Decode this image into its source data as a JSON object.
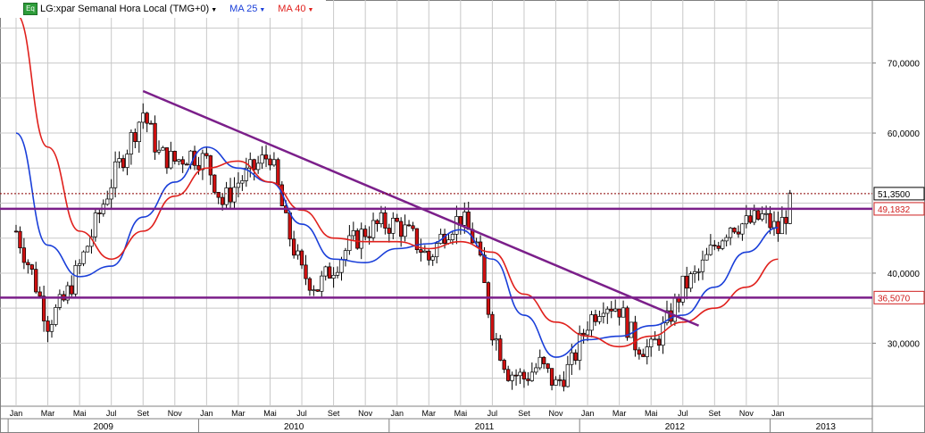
{
  "legend": {
    "icon_label": "Eq",
    "title": "LG:xpar Semanal Hora Local (TMG+0)",
    "ma25": "MA 25",
    "ma40": "MA 40",
    "colors": {
      "title": "#000000",
      "ma25": "#1a3fd9",
      "ma40": "#e0201c"
    }
  },
  "chart_data": {
    "type": "candlestick",
    "title": "LG:xpar Semanal Hora Local (TMG+0)",
    "ylim": [
      21,
      79
    ],
    "y_ticks": [
      "70,0000",
      "60,0000",
      "40,0000",
      "30,0000"
    ],
    "y_tick_values": [
      70,
      60,
      40,
      30
    ],
    "x_months": [
      "Jan",
      "Mar",
      "Mai",
      "Jul",
      "Set",
      "Nov",
      "Jan",
      "Mar",
      "Mai",
      "Jul",
      "Set",
      "Nov",
      "Jan",
      "Mar",
      "Mai",
      "Jul",
      "Set",
      "Nov",
      "Jan",
      "Mar",
      "Mai",
      "Jul",
      "Set",
      "Nov",
      "Jan"
    ],
    "x_years": [
      "2009",
      "2010",
      "2011",
      "2012",
      "2013"
    ],
    "price_labels": [
      {
        "text": "51,3500",
        "value": 51.35,
        "style": "current",
        "color": "#8b0000"
      },
      {
        "text": "49,1832",
        "value": 49.18,
        "style": "line",
        "color": "#d02020"
      },
      {
        "text": "36,5070",
        "value": 36.51,
        "style": "line",
        "color": "#d02020"
      }
    ],
    "horizontal_lines": [
      {
        "value": 49.18,
        "color": "#7b1f8a"
      },
      {
        "value": 36.51,
        "color": "#7b1f8a"
      }
    ],
    "trendline": {
      "from": [
        "2009-09",
        66
      ],
      "to": [
        "2012-08",
        32.5
      ],
      "color": "#7b1f8a"
    },
    "series": [
      {
        "name": "MA 25",
        "color": "#1a3fd9",
        "x": [
          "2009-01",
          "2009-03",
          "2009-05",
          "2009-07",
          "2009-09",
          "2009-11",
          "2010-01",
          "2010-03",
          "2010-05",
          "2010-07",
          "2010-09",
          "2010-11",
          "2011-01",
          "2011-03",
          "2011-05",
          "2011-07",
          "2011-09",
          "2011-11",
          "2012-01",
          "2012-03",
          "2012-05",
          "2012-07",
          "2012-09",
          "2012-11",
          "2013-01"
        ],
        "values": [
          60,
          44,
          39.5,
          41,
          48,
          53,
          58,
          55,
          53,
          47,
          42,
          41.5,
          43.5,
          44.2,
          46.2,
          42,
          34,
          28,
          30.5,
          31,
          32.5,
          34,
          38,
          43,
          46.5
        ]
      },
      {
        "name": "MA 40",
        "color": "#e0201c",
        "x": [
          "2009-01",
          "2009-03",
          "2009-05",
          "2009-07",
          "2009-09",
          "2009-11",
          "2010-01",
          "2010-03",
          "2010-05",
          "2010-07",
          "2010-09",
          "2010-11",
          "2011-01",
          "2011-03",
          "2011-05",
          "2011-07",
          "2011-09",
          "2011-11",
          "2012-01",
          "2012-03",
          "2012-05",
          "2012-07",
          "2012-09",
          "2012-11",
          "2013-01"
        ],
        "values": [
          77,
          58,
          46,
          42,
          46,
          51,
          55,
          56,
          53,
          49,
          45,
          44.5,
          44.5,
          43.5,
          44.5,
          43,
          37,
          33,
          31,
          29.5,
          31,
          33,
          35,
          38,
          42
        ]
      }
    ],
    "price_path": [
      [
        "2009-01",
        46
      ],
      [
        "2009-02",
        40
      ],
      [
        "2009-03",
        33
      ],
      [
        "2009-04",
        36
      ],
      [
        "2009-05",
        41
      ],
      [
        "2009-06",
        47
      ],
      [
        "2009-07",
        53
      ],
      [
        "2009-08",
        58
      ],
      [
        "2009-09",
        63
      ],
      [
        "2009-10",
        57
      ],
      [
        "2009-11",
        56
      ],
      [
        "2009-12",
        57
      ],
      [
        "2010-01",
        56
      ],
      [
        "2010-02",
        50
      ],
      [
        "2010-03",
        53
      ],
      [
        "2010-04",
        55
      ],
      [
        "2010-05",
        57
      ],
      [
        "2010-06",
        47
      ],
      [
        "2010-07",
        40
      ],
      [
        "2010-08",
        38
      ],
      [
        "2010-09",
        41
      ],
      [
        "2010-10",
        44
      ],
      [
        "2010-11",
        46
      ],
      [
        "2010-12",
        47
      ],
      [
        "2011-01",
        47
      ],
      [
        "2011-02",
        45
      ],
      [
        "2011-03",
        42
      ],
      [
        "2011-04",
        46
      ],
      [
        "2011-05",
        48
      ],
      [
        "2011-06",
        44
      ],
      [
        "2011-07",
        32
      ],
      [
        "2011-08",
        26
      ],
      [
        "2011-09",
        25
      ],
      [
        "2011-10",
        27
      ],
      [
        "2011-11",
        24
      ],
      [
        "2011-12",
        27
      ],
      [
        "2012-01",
        33
      ],
      [
        "2012-02",
        36
      ],
      [
        "2012-03",
        35
      ],
      [
        "2012-04",
        30
      ],
      [
        "2012-05",
        29
      ],
      [
        "2012-06",
        33
      ],
      [
        "2012-07",
        38
      ],
      [
        "2012-08",
        40
      ],
      [
        "2012-09",
        44
      ],
      [
        "2012-10",
        47
      ],
      [
        "2012-11",
        47
      ],
      [
        "2012-12",
        48
      ],
      [
        "2013-01",
        46
      ],
      [
        "2013-02",
        51
      ]
    ],
    "colors": {
      "up": "#ffffff",
      "down": "#d01010",
      "wick": "#000000",
      "grid": "#c8c8c8"
    }
  }
}
